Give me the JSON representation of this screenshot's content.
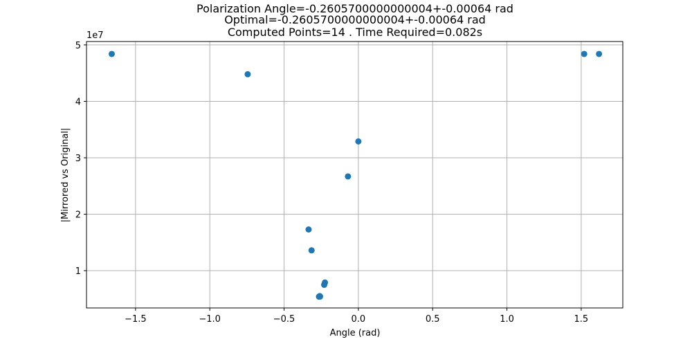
{
  "chart_data": {
    "type": "scatter",
    "title_lines": [
      "Polarization Angle=-0.2605700000000004+-0.00064 rad",
      "Optimal=-0.2605700000000004+-0.00064 rad",
      "Computed Points=14 . Time Required=0.082s"
    ],
    "xlabel": "Angle (rad)",
    "ylabel": "|Mirrored vs Original|",
    "y_offset_label": "1e7",
    "xlim": [
      -1.83,
      1.78
    ],
    "ylim": [
      3400000,
      50600000
    ],
    "x_ticks": [
      -1.5,
      -1.0,
      -0.5,
      0.0,
      0.5,
      1.0,
      1.5
    ],
    "x_tick_labels": [
      "−1.5",
      "−1.0",
      "−0.5",
      "0.0",
      "0.5",
      "1.0",
      "1.5"
    ],
    "y_ticks": [
      10000000,
      20000000,
      30000000,
      40000000,
      50000000
    ],
    "y_tick_labels": [
      "1",
      "2",
      "3",
      "4",
      "5"
    ],
    "grid": true,
    "marker_color": "#1f77b4",
    "points": [
      {
        "x": -1.66,
        "y": 48400000
      },
      {
        "x": -0.745,
        "y": 44800000
      },
      {
        "x": 1.52,
        "y": 48400000
      },
      {
        "x": 1.62,
        "y": 48400000
      },
      {
        "x": 0.0,
        "y": 32900000
      },
      {
        "x": -0.07,
        "y": 26700000
      },
      {
        "x": -0.335,
        "y": 17300000
      },
      {
        "x": -0.315,
        "y": 13600000
      },
      {
        "x": -0.225,
        "y": 7900000
      },
      {
        "x": -0.23,
        "y": 7500000
      },
      {
        "x": -0.26,
        "y": 5500000
      },
      {
        "x": -0.265,
        "y": 5400000
      },
      {
        "x": -0.26,
        "y": 5450000
      },
      {
        "x": -0.258,
        "y": 5420000
      }
    ]
  }
}
